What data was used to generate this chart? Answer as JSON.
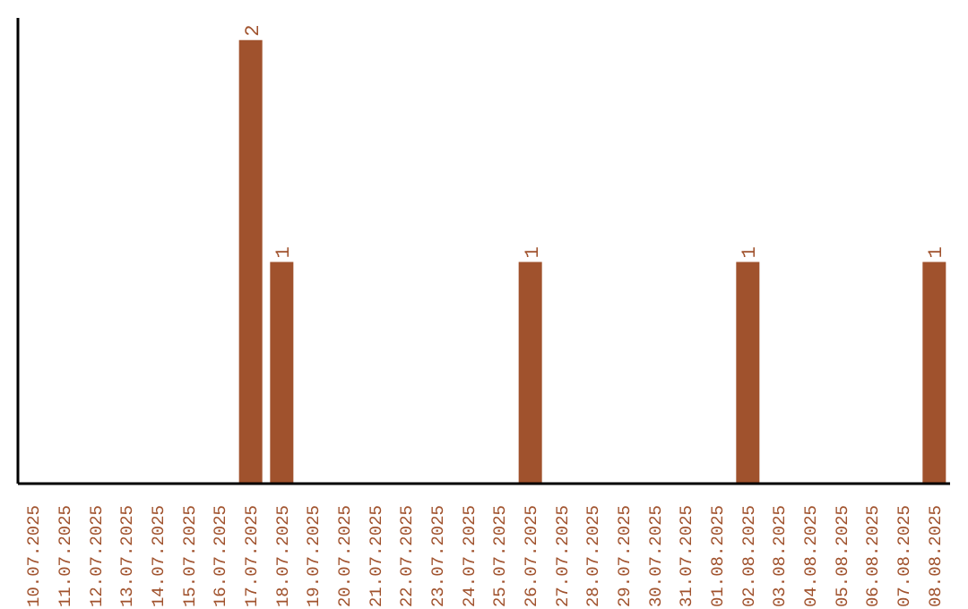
{
  "chart_data": {
    "type": "bar",
    "categories": [
      "10.07.2025",
      "11.07.2025",
      "12.07.2025",
      "13.07.2025",
      "14.07.2025",
      "15.07.2025",
      "16.07.2025",
      "17.07.2025",
      "18.07.2025",
      "19.07.2025",
      "20.07.2025",
      "21.07.2025",
      "22.07.2025",
      "23.07.2025",
      "24.07.2025",
      "25.07.2025",
      "26.07.2025",
      "27.07.2025",
      "28.07.2025",
      "29.07.2025",
      "30.07.2025",
      "31.07.2025",
      "01.08.2025",
      "02.08.2025",
      "03.08.2025",
      "04.08.2025",
      "05.08.2025",
      "06.08.2025",
      "07.08.2025",
      "08.08.2025"
    ],
    "values": [
      0,
      0,
      0,
      0,
      0,
      0,
      0,
      2,
      1,
      0,
      0,
      0,
      0,
      0,
      0,
      0,
      1,
      0,
      0,
      0,
      0,
      0,
      0,
      1,
      0,
      0,
      0,
      0,
      0,
      1
    ],
    "value_labels": [
      null,
      null,
      null,
      null,
      null,
      null,
      null,
      "2",
      "1",
      null,
      null,
      null,
      null,
      null,
      null,
      null,
      "1",
      null,
      null,
      null,
      null,
      null,
      null,
      "1",
      null,
      null,
      null,
      null,
      null,
      "1"
    ],
    "color": "#a0522d",
    "grid": false,
    "legend": false
  }
}
